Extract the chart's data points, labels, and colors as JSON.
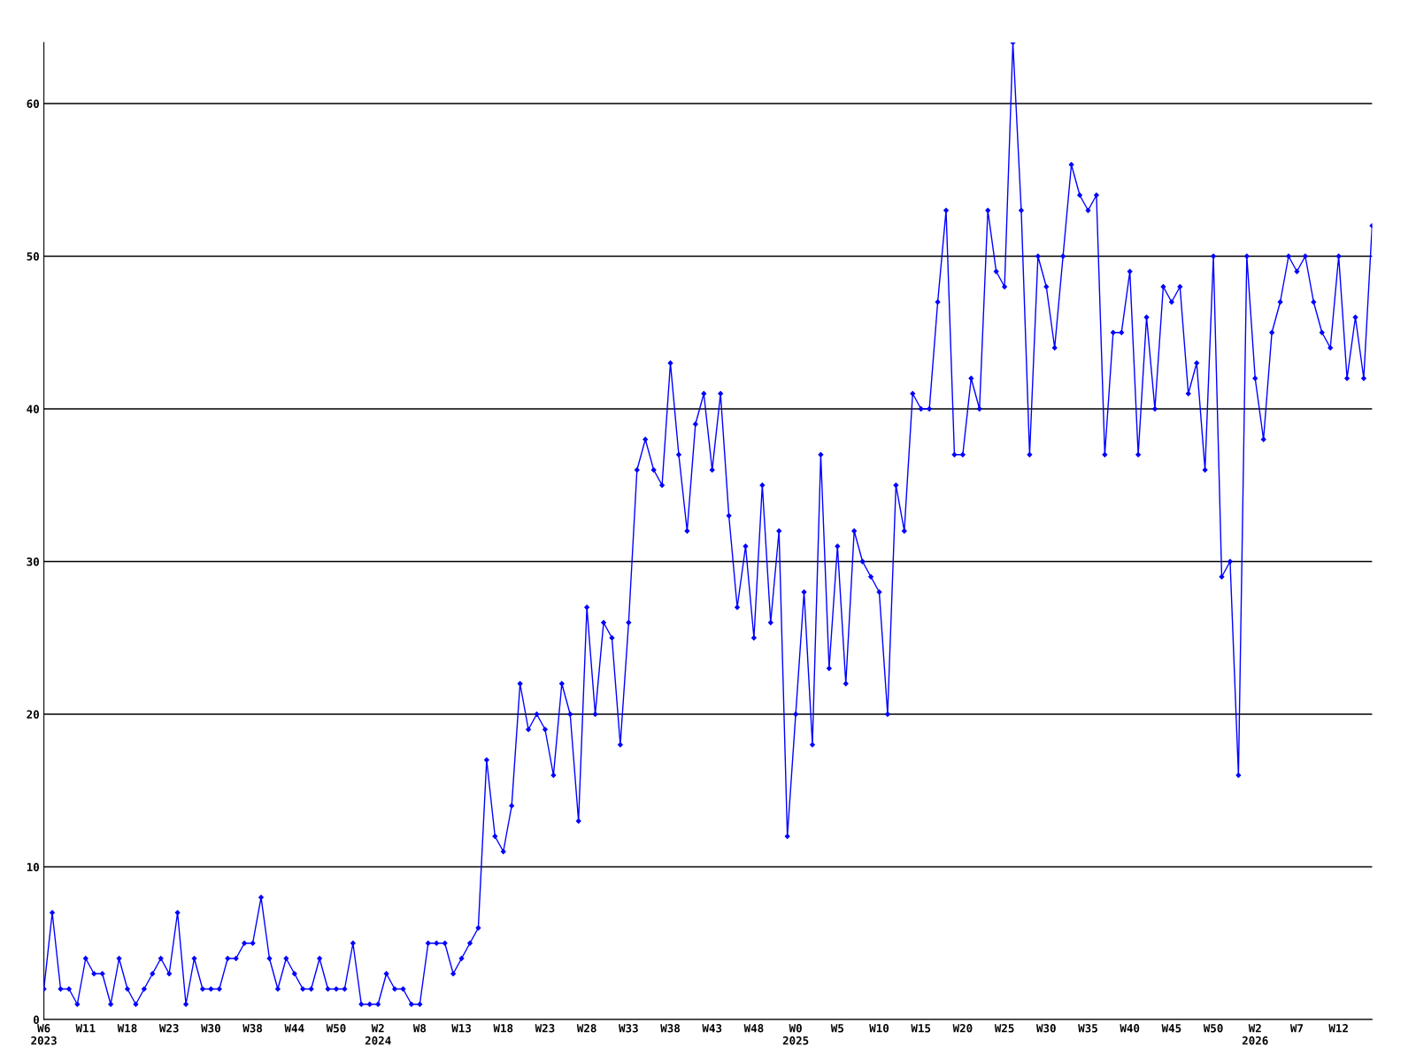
{
  "chart_data": {
    "type": "line",
    "categories": [
      "W6\n2023",
      null,
      null,
      null,
      null,
      "W11",
      null,
      null,
      null,
      null,
      "W18",
      null,
      null,
      null,
      null,
      "W23",
      null,
      null,
      null,
      null,
      "W30",
      null,
      null,
      null,
      null,
      "W38",
      null,
      null,
      null,
      null,
      "W44",
      null,
      null,
      null,
      null,
      "W50",
      null,
      null,
      null,
      null,
      "W2\n2024",
      null,
      null,
      null,
      null,
      "W8",
      null,
      null,
      null,
      null,
      "W13",
      null,
      null,
      null,
      null,
      "W18",
      null,
      null,
      null,
      null,
      "W23",
      null,
      null,
      null,
      null,
      "W28",
      null,
      null,
      null,
      null,
      "W33",
      null,
      null,
      null,
      null,
      "W38",
      null,
      null,
      null,
      null,
      "W43",
      null,
      null,
      null,
      null,
      "W48",
      null,
      null,
      null,
      null,
      "W0\n2025",
      null,
      null,
      null,
      null,
      "W5",
      null,
      null,
      null,
      null,
      "W10",
      null,
      null,
      null,
      null,
      "W15",
      null,
      null,
      null,
      null,
      "W20",
      null,
      null,
      null,
      null,
      "W25",
      null,
      null,
      null,
      null,
      "W30",
      null,
      null,
      null,
      null,
      "W35",
      null,
      null,
      null,
      null,
      "W40",
      null,
      null,
      null,
      null,
      "W45",
      null,
      null,
      null,
      null,
      "W50",
      null,
      null,
      null,
      null,
      "W2\n2026",
      null,
      null,
      null,
      null,
      "W7",
      null,
      null,
      null,
      null,
      "W12",
      null,
      null,
      null,
      null
    ],
    "series": [
      {
        "color": "#0000ff",
        "values": [
          2,
          7,
          2,
          2,
          1,
          4,
          3,
          3,
          1,
          4,
          2,
          1,
          2,
          3,
          4,
          3,
          7,
          1,
          4,
          2,
          2,
          2,
          4,
          4,
          5,
          5,
          8,
          4,
          2,
          4,
          3,
          2,
          2,
          4,
          2,
          2,
          2,
          5,
          1,
          1,
          1,
          3,
          2,
          2,
          1,
          1,
          5,
          5,
          5,
          3,
          4,
          5,
          6,
          17,
          12,
          11,
          14,
          22,
          19,
          20,
          19,
          16,
          22,
          20,
          13,
          27,
          20,
          26,
          25,
          18,
          26,
          36,
          38,
          36,
          35,
          43,
          37,
          32,
          39,
          41,
          36,
          41,
          33,
          27,
          31,
          25,
          35,
          26,
          32,
          12,
          20,
          28,
          18,
          37,
          23,
          31,
          22,
          32,
          30,
          29,
          28,
          20,
          35,
          32,
          41,
          40,
          40,
          47,
          53,
          37,
          37,
          42,
          40,
          53,
          49,
          48,
          64,
          53,
          37,
          50,
          48,
          44,
          50,
          56,
          54,
          53,
          54,
          37,
          45,
          45,
          49,
          37,
          46,
          40,
          48,
          47,
          48,
          41,
          43,
          36,
          50,
          29,
          30,
          16,
          50,
          42,
          38,
          45,
          47,
          50,
          49,
          50,
          47,
          45,
          44,
          50,
          42,
          46,
          42,
          52
        ]
      }
    ],
    "ylim": [
      0,
      64
    ],
    "yticks": [
      0,
      10,
      20,
      30,
      40,
      50,
      60
    ],
    "grid": "y",
    "marker": "diamond",
    "line_style": "solid"
  }
}
